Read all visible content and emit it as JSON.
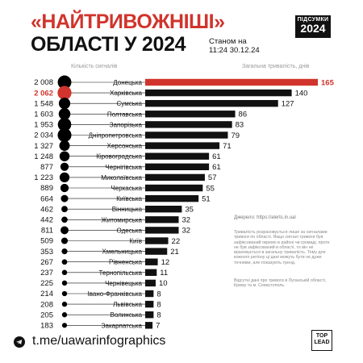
{
  "header": {
    "title_line1": "«НАЙТРИВОЖНІШІ»",
    "title_line2": "ОБЛАСТІ У 2024",
    "as_of_line1": "Станом на",
    "as_of_line2": "11:24 30.12.24",
    "badge_line1": "ПІДСУМКИ",
    "badge_line2": "2024"
  },
  "colors": {
    "accent": "#d0342c",
    "bar": "#111111",
    "dot": "#000000"
  },
  "notes": {
    "source": "Джерело: https://alerts.in.ua/",
    "body": "Тривалість розраховується лише за сигналами тривоги по області. Якщо сигнал тривоги був зафіксований окремо в районі чи громаді, проте не був зафіксований в області, то він не враховується в загальну тривалість. Тому для кожного регіону ці дані можуть бути не дуже точними, але показують тренд.",
    "extra": "Відсутні дані про тривоги в Луганській області, Криму та м. Севастополь."
  },
  "footer": {
    "link": "t.me/uawarinfographics",
    "logo_line1": "TOP",
    "logo_line2": "LEAD"
  },
  "chart_data": {
    "type": "bar",
    "left_caption": "Кількість сигналів",
    "right_caption": "Загальна тривалість, днів",
    "categories": [
      "Донецька",
      "Харківська",
      "Сумська",
      "Полтавська",
      "Запорізька",
      "Дніпропетровська",
      "Херсонська",
      "Кіровоградська",
      "Чернігівська",
      "Миколаївська",
      "Черкаська",
      "Київська",
      "Вінницька",
      "Житомирська",
      "Одеська",
      "Київ",
      "Хмельницька",
      "Рівненська",
      "Тернопільська",
      "Чернівецька",
      "Івано-Франківська",
      "Львівська",
      "Волинська",
      "Закарпатська"
    ],
    "signals": [
      2008,
      2062,
      1548,
      1603,
      1953,
      2034,
      1327,
      1248,
      877,
      1223,
      889,
      664,
      462,
      442,
      811,
      509,
      353,
      267,
      237,
      225,
      214,
      208,
      205,
      183
    ],
    "signals_labels": [
      "2 008",
      "2 062",
      "1 548",
      "1 603",
      "1 953",
      "2 034",
      "1 327",
      "1 248",
      "877",
      "1 223",
      "889",
      "664",
      "462",
      "442",
      "811",
      "509",
      "353",
      "267",
      "237",
      "225",
      "214",
      "208",
      "205",
      "183"
    ],
    "duration_days": [
      165,
      140,
      127,
      86,
      83,
      79,
      71,
      61,
      61,
      57,
      55,
      51,
      35,
      32,
      32,
      22,
      21,
      12,
      11,
      10,
      8,
      8,
      8,
      7
    ],
    "duration_labels": [
      "165",
      "140",
      "127",
      "86",
      "83",
      "79",
      "71",
      "61",
      "61",
      "57",
      "55",
      "51",
      "35",
      "32",
      "32",
      "22",
      "21",
      "12",
      "11",
      "10",
      "8",
      "8",
      "8",
      "7"
    ],
    "highlight_duration_index": 0,
    "highlight_signals_index": 1
  }
}
